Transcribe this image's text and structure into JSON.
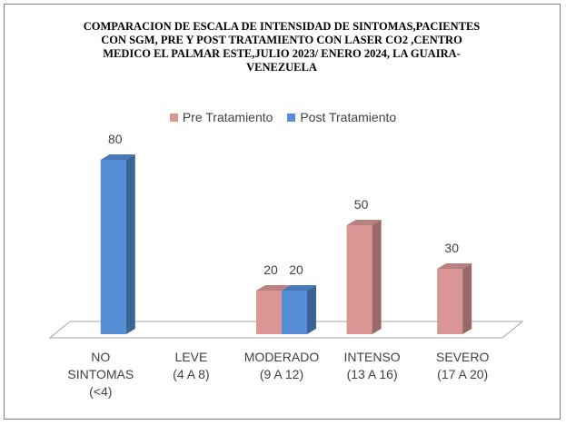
{
  "chart_data": {
    "type": "bar",
    "title": "COMPARACION DE ESCALA DE INTENSIDAD DE SINTOMAS,PACIENTES CON SGM, PRE Y POST TRATAMIENTO CON LASER CO2 ,CENTRO MEDICO EL PALMAR ESTE,JULIO 2023/ ENERO 2024, LA GUAIRA-VENEZUELA",
    "title_lines": [
      "COMPARACION DE ESCALA DE INTENSIDAD DE SINTOMAS,PACIENTES",
      "CON SGM, PRE Y POST TRATAMIENTO CON LASER CO2 ,CENTRO",
      "MEDICO EL PALMAR  ESTE,JULIO 2023/ ENERO 2024, LA GUAIRA-",
      "VENEZUELA"
    ],
    "categories": [
      [
        "NO",
        "SINTOMAS",
        "(<4)"
      ],
      [
        "LEVE",
        "(4 A 8)"
      ],
      [
        "MODERADO",
        "(9 A 12)"
      ],
      [
        "INTENSO",
        "(13 A 16)"
      ],
      [
        "SEVERO",
        "(17 A 20)"
      ]
    ],
    "series": [
      {
        "name": "Pre Tratamiento",
        "values": [
          0,
          0,
          20,
          50,
          30
        ],
        "color": "#D99694"
      },
      {
        "name": "Post Tratamiento",
        "values": [
          80,
          0,
          20,
          0,
          0
        ],
        "color": "#558ED5"
      }
    ],
    "ylim": [
      0,
      100
    ],
    "legend_position": "top",
    "grid": false,
    "style": "3d-column"
  }
}
